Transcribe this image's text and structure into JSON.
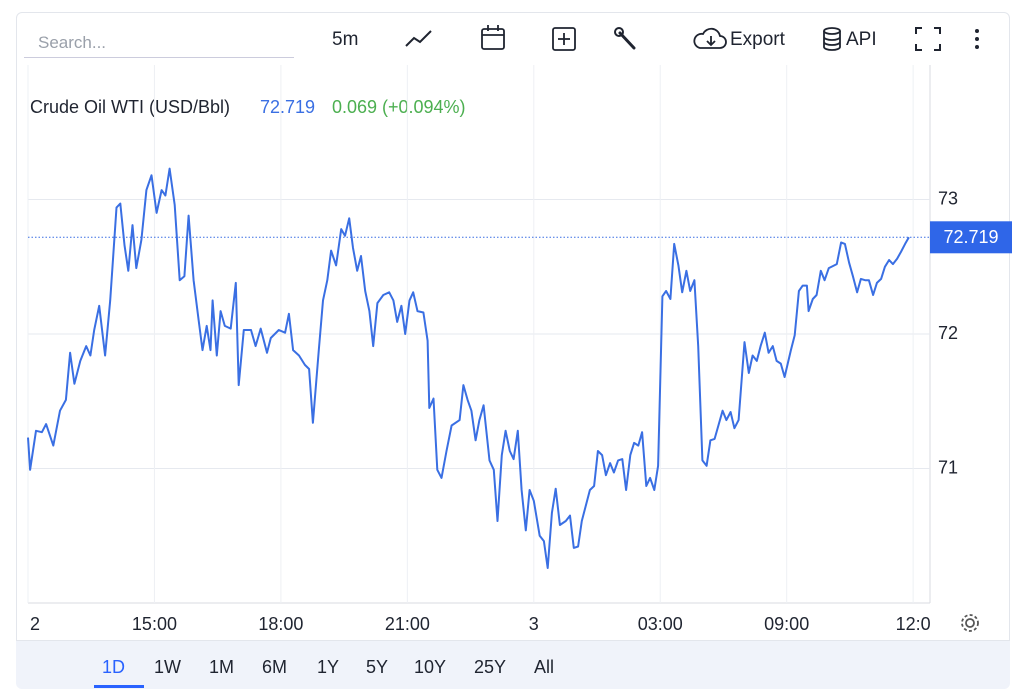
{
  "toolbar": {
    "search_placeholder": "Search...",
    "interval": "5m",
    "export": "Export",
    "api": "API"
  },
  "ranges": [
    "1D",
    "1W",
    "1M",
    "6M",
    "1Y",
    "5Y",
    "10Y",
    "25Y",
    "All"
  ],
  "chart_data": {
    "type": "line",
    "title": "Crude Oil WTI (USD/Bbl)",
    "last": 72.719,
    "change": 0.069,
    "change_pct": "(+0.094%)",
    "color": "#3a6fe3",
    "grid": true,
    "xlim": [
      0,
      21.4
    ],
    "ylim": [
      70,
      74
    ],
    "yticks": [
      71,
      72,
      73
    ],
    "xticks": [
      {
        "value": 0,
        "label": "2"
      },
      {
        "value": 3,
        "label": "15:00"
      },
      {
        "value": 6,
        "label": "18:00"
      },
      {
        "value": 9,
        "label": "21:00"
      },
      {
        "value": 12,
        "label": "3"
      },
      {
        "value": 15,
        "label": "03:00"
      },
      {
        "value": 18,
        "label": "09:00"
      },
      {
        "value": 21,
        "label": "12:0"
      }
    ],
    "x": [
      0,
      0.05,
      0.19,
      0.33,
      0.43,
      0.6,
      0.76,
      0.9,
      1,
      1.1,
      1.24,
      1.38,
      1.48,
      1.57,
      1.69,
      1.83,
      1.95,
      2.1,
      2.19,
      2.29,
      2.38,
      2.48,
      2.57,
      2.69,
      2.81,
      2.93,
      3.05,
      3.17,
      3.26,
      3.36,
      3.48,
      3.6,
      3.71,
      3.81,
      3.93,
      4.05,
      4.14,
      4.24,
      4.33,
      4.38,
      4.48,
      4.57,
      4.67,
      4.81,
      4.93,
      5,
      5.12,
      5.29,
      5.4,
      5.52,
      5.67,
      5.76,
      5.95,
      6.1,
      6.19,
      6.29,
      6.43,
      6.57,
      6.67,
      6.76,
      6.9,
      7,
      7.1,
      7.19,
      7.31,
      7.43,
      7.52,
      7.62,
      7.71,
      7.81,
      7.9,
      8,
      8.1,
      8.19,
      8.29,
      8.43,
      8.57,
      8.67,
      8.76,
      8.86,
      8.95,
      9.05,
      9.14,
      9.24,
      9.38,
      9.48,
      9.52,
      9.62,
      9.71,
      9.81,
      9.93,
      10.05,
      10.24,
      10.33,
      10.43,
      10.52,
      10.62,
      10.71,
      10.81,
      10.95,
      11.05,
      11.14,
      11.24,
      11.33,
      11.43,
      11.52,
      11.62,
      11.71,
      11.81,
      11.9,
      12,
      12.14,
      12.24,
      12.33,
      12.43,
      12.52,
      12.62,
      12.76,
      12.86,
      12.95,
      13.05,
      13.14,
      13.33,
      13.43,
      13.52,
      13.62,
      13.71,
      13.81,
      13.9,
      14,
      14.1,
      14.19,
      14.29,
      14.38,
      14.48,
      14.57,
      14.67,
      14.76,
      14.86,
      14.95,
      15.05,
      15.14,
      15.24,
      15.33,
      15.43,
      15.52,
      15.62,
      15.71,
      15.81,
      15.9,
      16,
      16.1,
      16.19,
      16.29,
      16.38,
      16.48,
      16.57,
      16.67,
      16.76,
      16.86,
      17,
      17.1,
      17.19,
      17.29,
      17.38,
      17.48,
      17.57,
      17.67,
      17.76,
      17.86,
      17.95,
      18.1,
      18.19,
      18.29,
      18.38,
      18.48,
      18.52,
      18.62,
      18.71,
      18.81,
      18.9,
      19,
      19.19,
      19.29,
      19.38,
      19.48,
      19.57,
      19.67,
      19.76,
      19.86,
      19.95,
      20.05,
      20.14,
      20.24,
      20.33,
      20.43,
      20.52,
      20.62,
      20.71,
      20.81,
      20.9
    ],
    "values": [
      71.23,
      70.99,
      71.28,
      71.27,
      71.33,
      71.17,
      71.43,
      71.51,
      71.86,
      71.63,
      71.8,
      71.91,
      71.84,
      72.03,
      72.21,
      71.84,
      72.25,
      72.94,
      72.97,
      72.66,
      72.47,
      72.81,
      72.49,
      72.7,
      73.07,
      73.18,
      72.9,
      73.07,
      73.03,
      73.23,
      72.96,
      72.4,
      72.43,
      72.88,
      72.4,
      72.1,
      71.88,
      72.06,
      71.88,
      72.25,
      71.84,
      72.17,
      72.06,
      72.04,
      72.38,
      71.62,
      72.03,
      72.03,
      71.91,
      72.04,
      71.86,
      71.97,
      72.03,
      72.01,
      72.15,
      71.88,
      71.84,
      71.77,
      71.74,
      71.34,
      71.88,
      72.25,
      72.4,
      72.62,
      72.51,
      72.78,
      72.73,
      72.86,
      72.64,
      72.47,
      72.58,
      72.32,
      72.17,
      71.91,
      72.23,
      72.29,
      72.31,
      72.25,
      72.09,
      72.21,
      72,
      72.25,
      72.31,
      72.17,
      72.16,
      71.95,
      71.45,
      71.52,
      70.99,
      70.93,
      71.13,
      71.32,
      71.36,
      71.62,
      71.51,
      71.43,
      71.21,
      71.36,
      71.47,
      71.06,
      70.99,
      70.61,
      71.1,
      71.28,
      71.13,
      71.07,
      71.28,
      70.84,
      70.54,
      70.84,
      70.76,
      70.5,
      70.46,
      70.26,
      70.67,
      70.85,
      70.58,
      70.61,
      70.65,
      70.41,
      70.42,
      70.61,
      70.84,
      70.87,
      71.13,
      71.1,
      70.95,
      71.04,
      70.97,
      71.06,
      71.07,
      70.84,
      71.1,
      71.19,
      71.17,
      71.27,
      70.87,
      70.93,
      70.84,
      71.02,
      72.28,
      72.32,
      72.26,
      72.67,
      72.51,
      72.31,
      72.47,
      72.32,
      72.4,
      71.91,
      71.06,
      71.02,
      71.21,
      71.22,
      71.32,
      71.43,
      71.36,
      71.42,
      71.3,
      71.36,
      71.94,
      71.71,
      71.84,
      71.8,
      71.91,
      72.01,
      71.86,
      71.91,
      71.8,
      71.78,
      71.68,
      71.88,
      71.99,
      72.32,
      72.36,
      72.36,
      72.17,
      72.26,
      72.29,
      72.47,
      72.4,
      72.49,
      72.52,
      72.68,
      72.67,
      72.53,
      72.43,
      72.31,
      72.41,
      72.4,
      72.4,
      72.29,
      72.38,
      72.41,
      72.5,
      72.55,
      72.52,
      72.56,
      72.61,
      72.67,
      72.719
    ]
  }
}
